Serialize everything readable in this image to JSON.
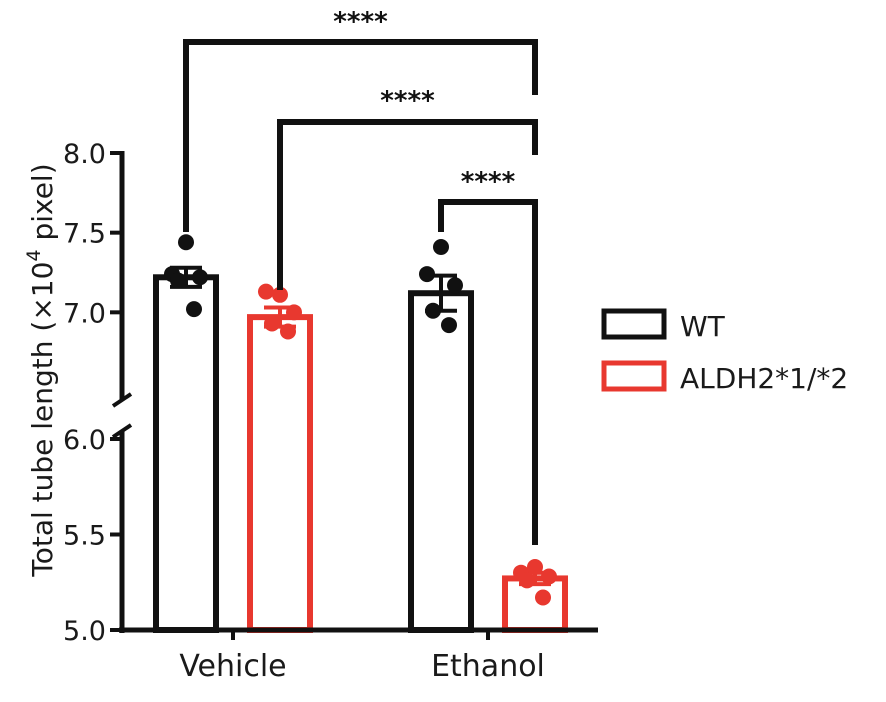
{
  "chart_data": {
    "type": "bar",
    "title": "",
    "xlabel": "",
    "ylabel": "Total tube length (×10",
    "ylabel_superscript": "4",
    "ylabel_suffix": " pixel)",
    "ylim": [
      5.0,
      8.0
    ],
    "yticks": [
      "5.0",
      "5.5",
      "6.0",
      "7.0",
      "7.5",
      "8.0"
    ],
    "y_axis_break": {
      "from": 6.0,
      "to": 6.5
    },
    "categories": [
      "Vehicle",
      "Ethanol"
    ],
    "legend_position": "right",
    "grid": false,
    "series": [
      {
        "name": "WT",
        "color": "#111111",
        "filled": false,
        "values": [
          7.22,
          7.12
        ],
        "sem": [
          0.06,
          0.11
        ],
        "points": [
          [
            7.44,
            7.24,
            7.22,
            7.2,
            7.02
          ],
          [
            7.41,
            7.24,
            7.17,
            7.01,
            6.92
          ]
        ]
      },
      {
        "name": "ALDH2*1/*2",
        "color": "#e8382f",
        "filled": false,
        "values": [
          6.97,
          5.27
        ],
        "sem": [
          0.06,
          0.03
        ],
        "points": [
          [
            7.11,
            7.13,
            7.0,
            6.93,
            6.88
          ],
          [
            5.33,
            5.3,
            5.28,
            5.26,
            5.17
          ]
        ]
      }
    ],
    "comparisons": [
      {
        "from": "WT Vehicle",
        "to": "ALDH2*1/*2 Ethanol",
        "label": "****"
      },
      {
        "from": "ALDH2*1/*2 Vehicle",
        "to": "ALDH2*1/*2 Ethanol",
        "label": "****"
      },
      {
        "from": "WT Ethanol",
        "to": "ALDH2*1/*2 Ethanol",
        "label": "****"
      }
    ]
  }
}
